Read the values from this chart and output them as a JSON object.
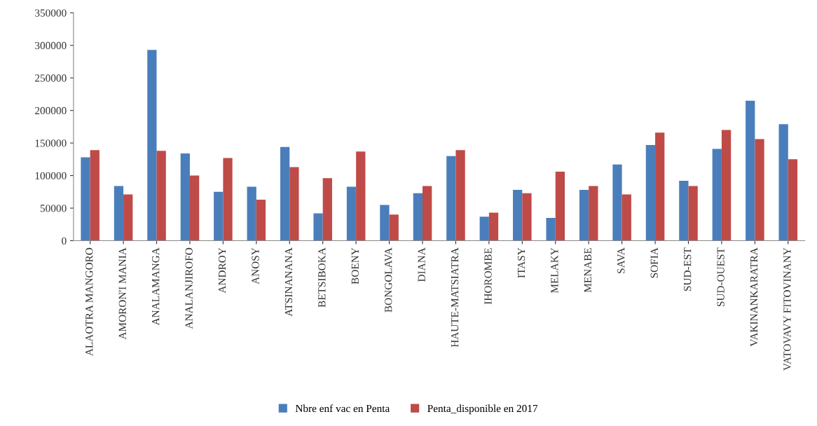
{
  "chart_data": {
    "type": "bar",
    "categories": [
      "ALAOTRA MANGORO",
      "AMORON'I MANIA",
      "ANALAMANGA",
      "ANALANJIROFO",
      "ANDROY",
      "ANOSY",
      "ATSINANANA",
      "BETSIBOKA",
      "BOENY",
      "BONGOLAVA",
      "DIANA",
      "HAUTE-MATSIATRA",
      "IHOROMBE",
      "ITASY",
      "MELAKY",
      "MENABE",
      "SAVA",
      "SOFIA",
      "SUD-EST",
      "SUD-OUEST",
      "VAKINANKARATRA",
      "VATOVAVY FITOVINANY"
    ],
    "series": [
      {
        "name": "Nbre enf vac en Penta",
        "color": "#4a7ebb",
        "values": [
          128000,
          84000,
          293000,
          134000,
          75000,
          83000,
          144000,
          42000,
          83000,
          55000,
          73000,
          130000,
          37000,
          78000,
          35000,
          78000,
          117000,
          147000,
          92000,
          141000,
          215000,
          179000
        ]
      },
      {
        "name": "Penta_disponible en 2017",
        "color": "#be4b48",
        "values": [
          139000,
          71000,
          138000,
          100000,
          127000,
          63000,
          113000,
          96000,
          137000,
          40000,
          84000,
          139000,
          43000,
          73000,
          106000,
          84000,
          71000,
          166000,
          84000,
          170000,
          156000,
          125000
        ]
      }
    ],
    "ylim": [
      0,
      350000
    ],
    "yticks": [
      0,
      50000,
      100000,
      150000,
      200000,
      250000,
      300000,
      350000
    ],
    "grid": false,
    "legend": "bottom"
  }
}
